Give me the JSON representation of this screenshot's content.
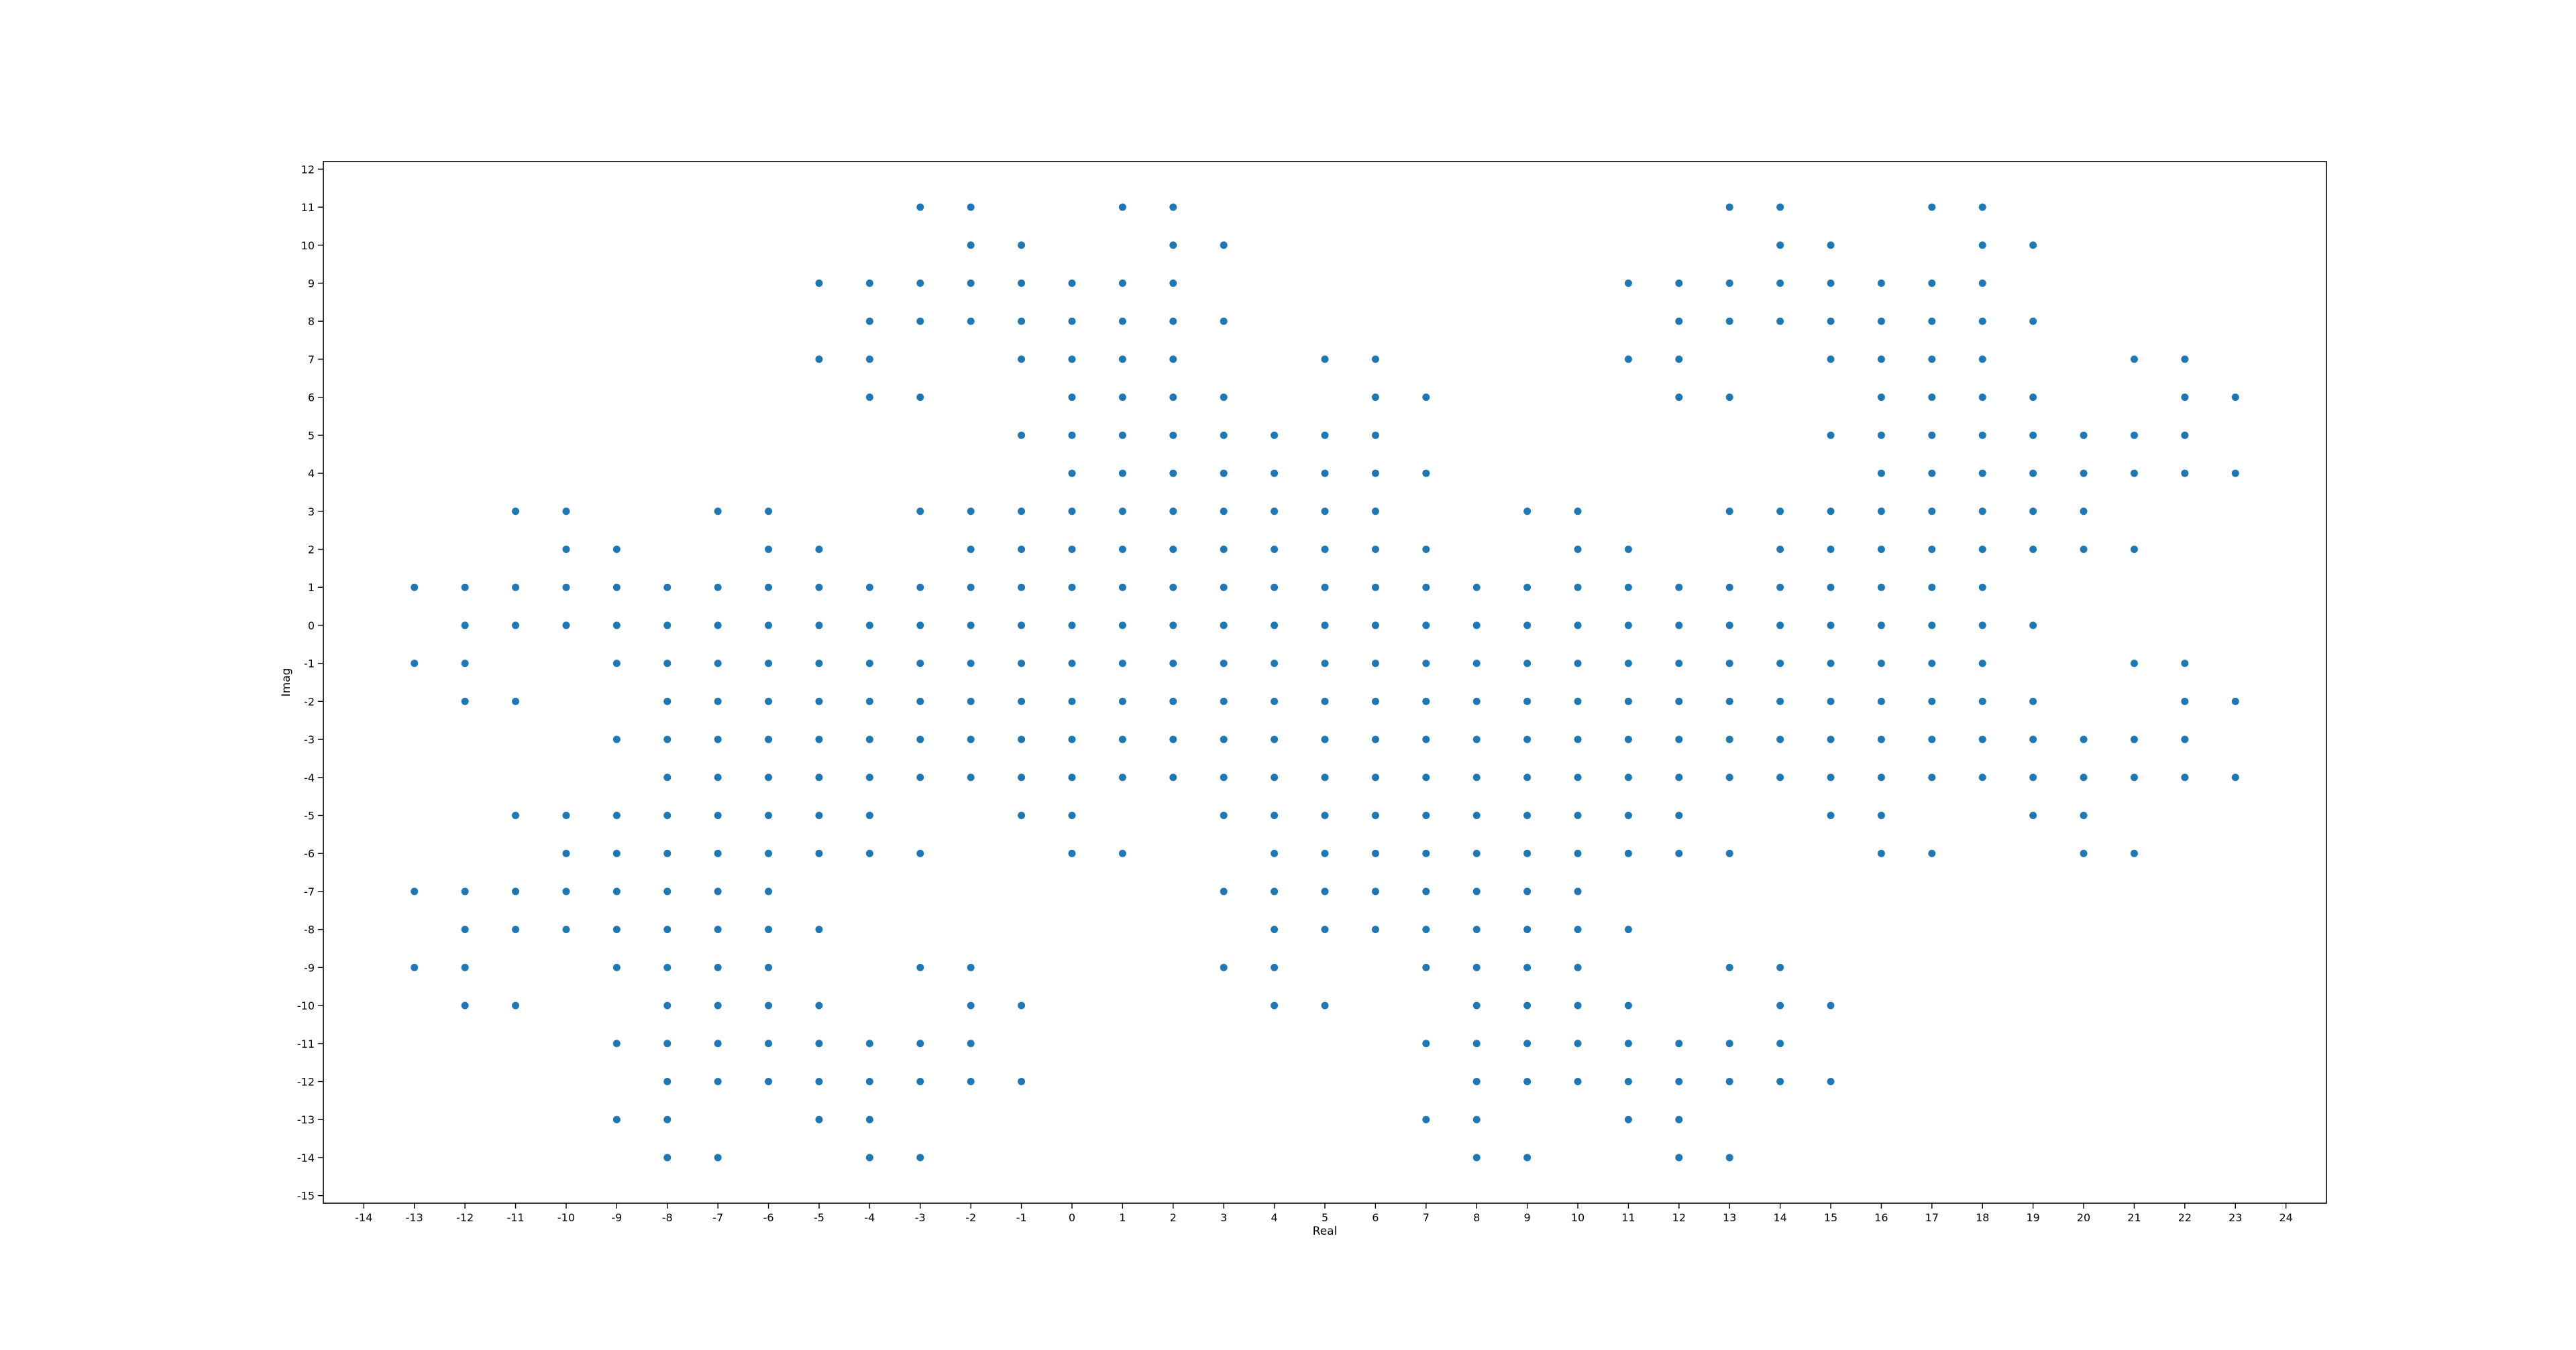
{
  "chart_data": {
    "type": "scatter",
    "title": "",
    "xlabel": "Real",
    "ylabel": "Imag",
    "xlim": [
      -14.8,
      24.8
    ],
    "ylim": [
      -15.2,
      12.2
    ],
    "xticks": [
      -14,
      -13,
      -12,
      -11,
      -10,
      -9,
      -8,
      -7,
      -6,
      -5,
      -4,
      -3,
      -2,
      -1,
      0,
      1,
      2,
      3,
      4,
      5,
      6,
      7,
      8,
      9,
      10,
      11,
      12,
      13,
      14,
      15,
      16,
      17,
      18,
      19,
      20,
      21,
      22,
      23,
      24
    ],
    "yticks": [
      12,
      11,
      10,
      9,
      8,
      7,
      6,
      5,
      4,
      3,
      2,
      1,
      0,
      -1,
      -2,
      -3,
      -4,
      -5,
      -6,
      -7,
      -8,
      -9,
      -10,
      -11,
      -12,
      -13,
      -14,
      -15
    ],
    "grid": false,
    "marker_color": "#1f77b4",
    "rows": [
      {
        "y": 11,
        "x": [
          -3,
          -2,
          1,
          2,
          13,
          14,
          17,
          18
        ]
      },
      {
        "y": 10,
        "x": [
          -2,
          -1,
          2,
          3,
          14,
          15,
          18,
          19
        ]
      },
      {
        "y": 9,
        "x": [
          -5,
          -4,
          -3,
          -2,
          -1,
          0,
          1,
          2,
          11,
          12,
          13,
          14,
          15,
          16,
          17,
          18
        ]
      },
      {
        "y": 8,
        "x": [
          -4,
          -3,
          -2,
          -1,
          0,
          1,
          2,
          3,
          12,
          13,
          14,
          15,
          16,
          17,
          18,
          19
        ]
      },
      {
        "y": 7,
        "x": [
          -5,
          -4,
          -1,
          0,
          1,
          2,
          5,
          6,
          11,
          12,
          15,
          16,
          17,
          18,
          21,
          22
        ]
      },
      {
        "y": 6,
        "x": [
          -4,
          -3,
          0,
          1,
          2,
          3,
          6,
          7,
          12,
          13,
          16,
          17,
          18,
          19,
          22,
          23
        ]
      },
      {
        "y": 5,
        "x": [
          -1,
          0,
          1,
          2,
          3,
          4,
          5,
          6,
          15,
          16,
          17,
          18,
          19,
          20,
          21,
          22
        ]
      },
      {
        "y": 4,
        "x": [
          0,
          1,
          2,
          3,
          4,
          5,
          6,
          7,
          16,
          17,
          18,
          19,
          20,
          21,
          22,
          23
        ]
      },
      {
        "y": 3,
        "x": [
          -11,
          -10,
          -7,
          -6,
          -3,
          -2,
          -1,
          0,
          1,
          2,
          3,
          4,
          5,
          6,
          9,
          10,
          13,
          14,
          15,
          16,
          17,
          18,
          19,
          20
        ]
      },
      {
        "y": 2,
        "x": [
          -10,
          -9,
          -6,
          -5,
          -2,
          -1,
          0,
          1,
          2,
          3,
          4,
          5,
          6,
          7,
          10,
          11,
          14,
          15,
          16,
          17,
          18,
          19,
          20,
          21
        ]
      },
      {
        "y": 1,
        "x": [
          -13,
          -12,
          -11,
          -10,
          -9,
          -8,
          -7,
          -6,
          -5,
          -4,
          -3,
          -2,
          -1,
          0,
          1,
          2,
          3,
          4,
          5,
          6,
          7,
          8,
          9,
          10,
          11,
          12,
          13,
          14,
          15,
          16,
          17,
          18
        ]
      },
      {
        "y": 0,
        "x": [
          -12,
          -11,
          -10,
          -9,
          -8,
          -7,
          -6,
          -5,
          -4,
          -3,
          -2,
          -1,
          0,
          1,
          2,
          3,
          4,
          5,
          6,
          7,
          8,
          9,
          10,
          11,
          12,
          13,
          14,
          15,
          16,
          17,
          18,
          19
        ]
      },
      {
        "y": -1,
        "x": [
          -13,
          -12,
          -9,
          -8,
          -7,
          -6,
          -5,
          -4,
          -3,
          -2,
          -1,
          0,
          1,
          2,
          3,
          4,
          5,
          6,
          7,
          8,
          9,
          10,
          11,
          12,
          13,
          14,
          15,
          16,
          17,
          18,
          21,
          22
        ]
      },
      {
        "y": -2,
        "x": [
          -12,
          -11,
          -8,
          -7,
          -6,
          -5,
          -4,
          -3,
          -2,
          -1,
          0,
          1,
          2,
          3,
          4,
          5,
          6,
          7,
          8,
          9,
          10,
          11,
          12,
          13,
          14,
          15,
          16,
          17,
          18,
          19,
          22,
          23
        ]
      },
      {
        "y": -3,
        "x": [
          -9,
          -8,
          -7,
          -6,
          -5,
          -4,
          -3,
          -2,
          -1,
          0,
          1,
          2,
          3,
          4,
          5,
          6,
          7,
          8,
          9,
          10,
          11,
          12,
          13,
          14,
          15,
          16,
          17,
          18,
          19,
          20,
          21,
          22
        ]
      },
      {
        "y": -4,
        "x": [
          -8,
          -7,
          -6,
          -5,
          -4,
          -3,
          -2,
          -1,
          0,
          1,
          2,
          3,
          4,
          5,
          6,
          7,
          8,
          9,
          10,
          11,
          12,
          13,
          14,
          15,
          16,
          17,
          18,
          19,
          20,
          21,
          22,
          23
        ]
      },
      {
        "y": -5,
        "x": [
          -11,
          -10,
          -9,
          -8,
          -7,
          -6,
          -5,
          -4,
          -1,
          0,
          3,
          4,
          5,
          6,
          7,
          8,
          9,
          10,
          11,
          12,
          15,
          16,
          19,
          20
        ]
      },
      {
        "y": -6,
        "x": [
          -10,
          -9,
          -8,
          -7,
          -6,
          -5,
          -4,
          -3,
          0,
          1,
          4,
          5,
          6,
          7,
          8,
          9,
          10,
          11,
          12,
          13,
          16,
          17,
          20,
          21
        ]
      },
      {
        "y": -7,
        "x": [
          -13,
          -12,
          -11,
          -10,
          -9,
          -8,
          -7,
          -6,
          3,
          4,
          5,
          6,
          7,
          8,
          9,
          10
        ]
      },
      {
        "y": -8,
        "x": [
          -12,
          -11,
          -10,
          -9,
          -8,
          -7,
          -6,
          -5,
          4,
          5,
          6,
          7,
          8,
          9,
          10,
          11
        ]
      },
      {
        "y": -9,
        "x": [
          -13,
          -12,
          -9,
          -8,
          -7,
          -6,
          -3,
          -2,
          3,
          4,
          7,
          8,
          9,
          10,
          13,
          14
        ]
      },
      {
        "y": -10,
        "x": [
          -12,
          -11,
          -8,
          -7,
          -6,
          -5,
          -2,
          -1,
          4,
          5,
          8,
          9,
          10,
          11,
          14,
          15
        ]
      },
      {
        "y": -11,
        "x": [
          -9,
          -8,
          -7,
          -6,
          -5,
          -4,
          -3,
          -2,
          7,
          8,
          9,
          10,
          11,
          12,
          13,
          14
        ]
      },
      {
        "y": -12,
        "x": [
          -8,
          -7,
          -6,
          -5,
          -4,
          -3,
          -2,
          -1,
          8,
          9,
          10,
          11,
          12,
          13,
          14,
          15
        ]
      },
      {
        "y": -13,
        "x": [
          -9,
          -8,
          -5,
          -4,
          7,
          8,
          11,
          12
        ]
      },
      {
        "y": -14,
        "x": [
          -8,
          -7,
          -4,
          -3,
          8,
          9,
          12,
          13
        ]
      }
    ]
  }
}
